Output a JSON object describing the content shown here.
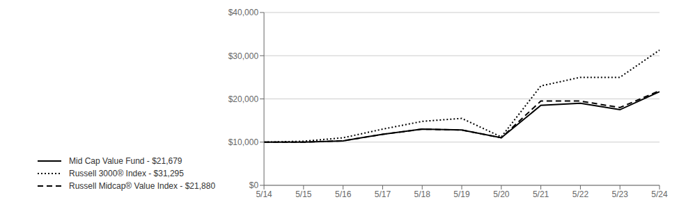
{
  "chart_data": {
    "type": "line",
    "categories": [
      "5/14",
      "5/15",
      "5/16",
      "5/17",
      "5/18",
      "5/19",
      "5/20",
      "5/21",
      "5/22",
      "5/23",
      "5/24"
    ],
    "series": [
      {
        "name": "Mid Cap Value Fund - $21,679",
        "color": "#000000",
        "line_style": "solid",
        "values": [
          10000,
          10000,
          10300,
          11800,
          13000,
          12800,
          11000,
          18500,
          19000,
          17500,
          21679
        ]
      },
      {
        "name": "Russell 3000® Index - $31,295",
        "color": "#000000",
        "line_style": "dotted",
        "values": [
          10000,
          10200,
          11000,
          13000,
          14800,
          15500,
          11200,
          23000,
          25000,
          25000,
          31295
        ]
      },
      {
        "name": "Russell Midcap® Value Index - $21,880",
        "color": "#000000",
        "line_style": "dashed",
        "values": [
          10000,
          10000,
          10300,
          11800,
          13000,
          12800,
          11000,
          19500,
          19500,
          18000,
          21880
        ]
      }
    ],
    "ylim": [
      0,
      40000
    ],
    "yticks": [
      {
        "value": 0,
        "label": "$0"
      },
      {
        "value": 10000,
        "label": "$10,000"
      },
      {
        "value": 20000,
        "label": "$20,000"
      },
      {
        "value": 30000,
        "label": "$30,000"
      },
      {
        "value": 40000,
        "label": "$40,000"
      }
    ],
    "grid": true,
    "legend": "bottom"
  }
}
